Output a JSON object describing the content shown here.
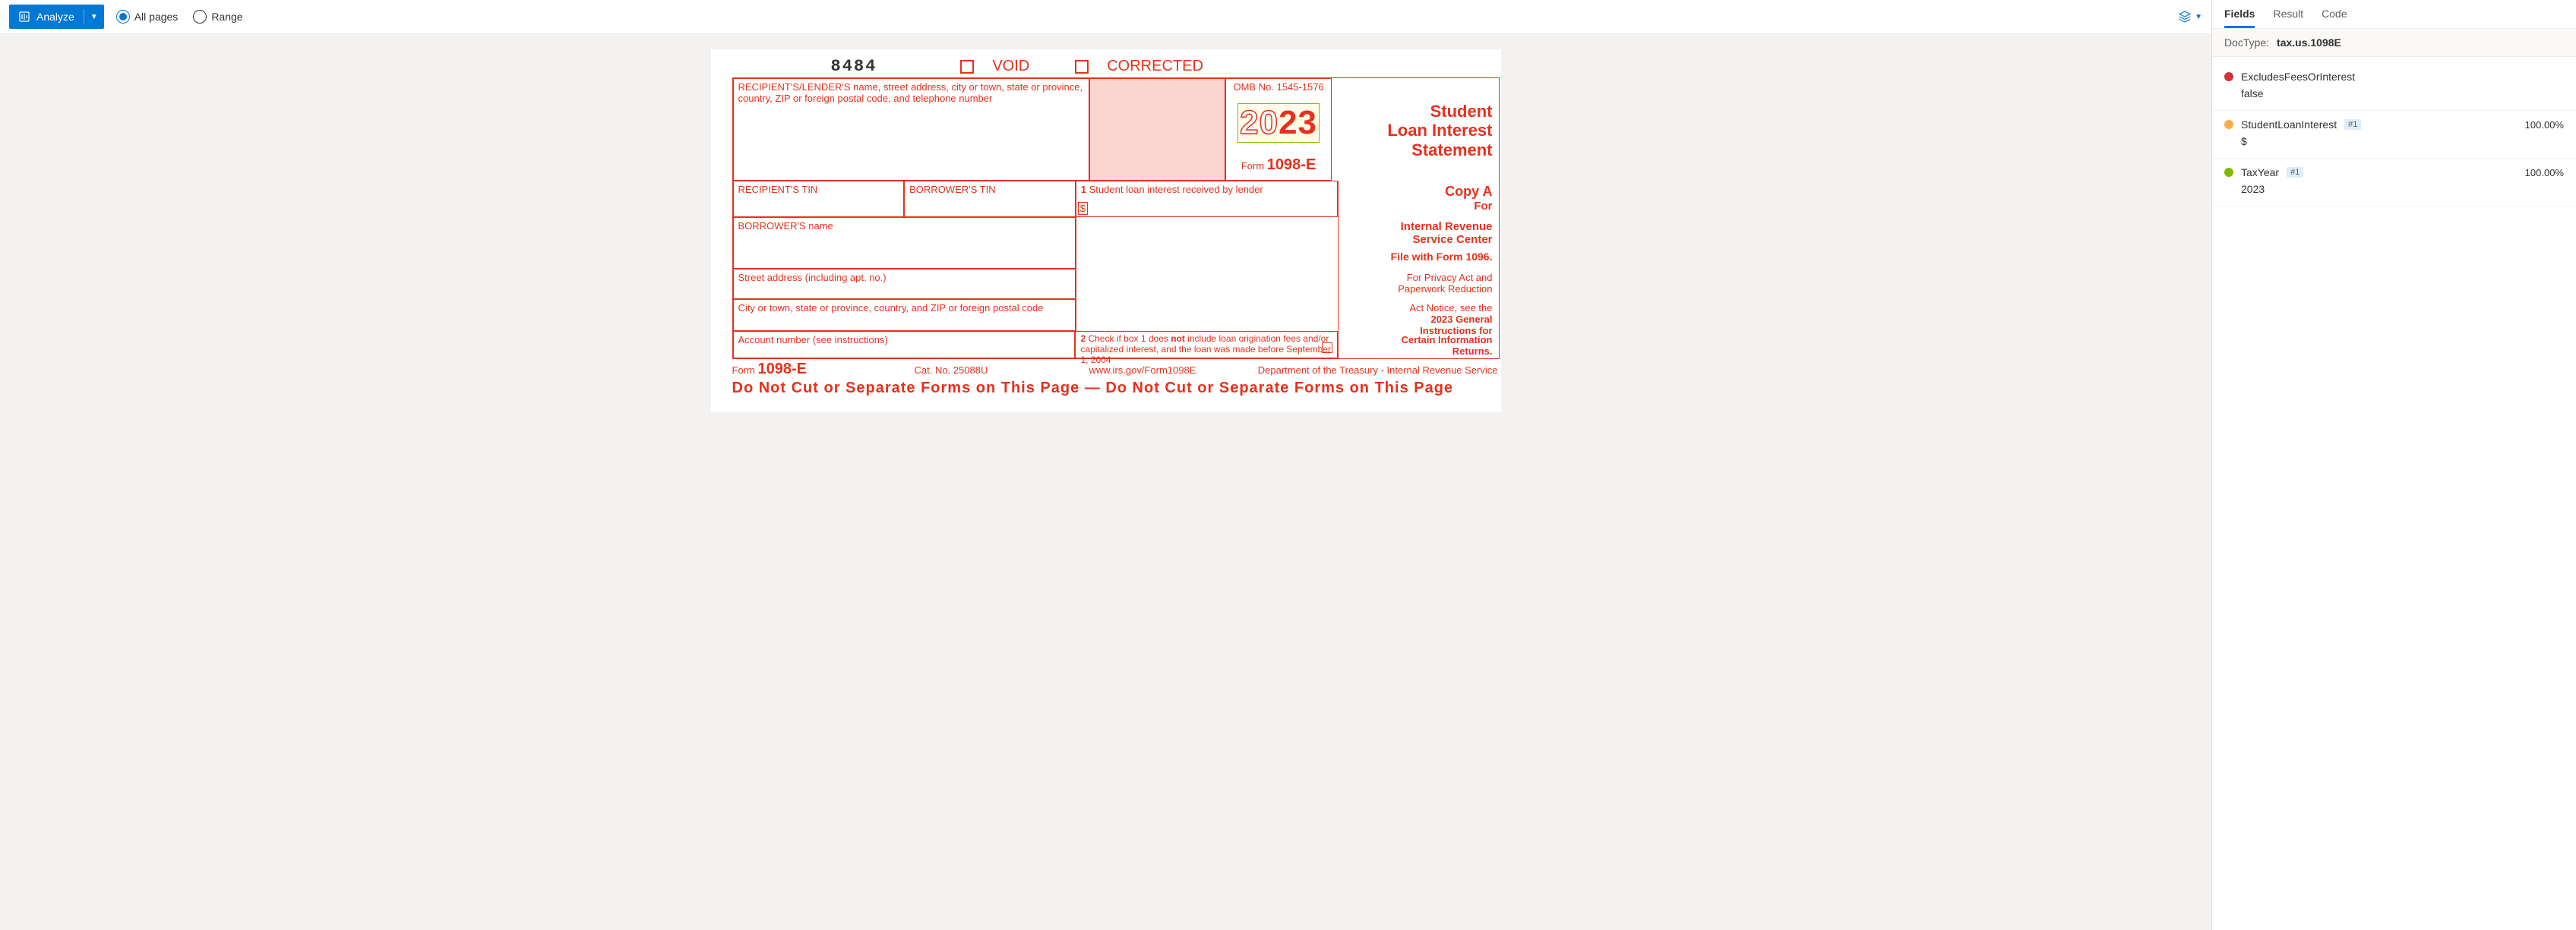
{
  "toolbar": {
    "analyze_label": "Analyze",
    "all_pages_label": "All pages",
    "range_label": "Range",
    "selected_mode": "all"
  },
  "side": {
    "tabs": [
      "Fields",
      "Result",
      "Code"
    ],
    "active_tab": 0,
    "doctype_label": "DocType:",
    "doctype_value": "tax.us.1098E",
    "fields": [
      {
        "color": "#d13438",
        "name": "ExcludesFeesOrInterest",
        "badge": null,
        "confidence": null,
        "value": "false"
      },
      {
        "color": "#ffaa44",
        "name": "StudentLoanInterest",
        "badge": "#1",
        "confidence": "100.00%",
        "value": "$"
      },
      {
        "color": "#7fba00",
        "name": "TaxYear",
        "badge": "#1",
        "confidence": "100.00%",
        "value": "2023"
      }
    ]
  },
  "form": {
    "stamp": "8484",
    "void_label": "VOID",
    "corrected_label": "CORRECTED",
    "lender_label": "RECIPIENT'S/LENDER'S name, street address, city or town, state or province, country, ZIP or foreign postal code, and telephone number",
    "omb": "OMB No. 1545-1576",
    "year_20": "20",
    "year_23": "23",
    "form_label": "Form",
    "form_code": "1098-E",
    "title_line1": "Student",
    "title_line2": "Loan Interest",
    "title_line3": "Statement",
    "recipient_tin": "RECIPIENT'S TIN",
    "borrower_tin": "BORROWER'S TIN",
    "box1_label": "Student loan interest received by lender",
    "box1_num": "1",
    "dollar": "$",
    "copy_a": "Copy A",
    "for_label": "For",
    "irs_center1": "Internal Revenue",
    "irs_center2": "Service Center",
    "file_with": "File with Form 1096.",
    "privacy1": "For Privacy Act and",
    "privacy2": "Paperwork Reduction",
    "privacy3": "Act Notice, see the",
    "privacy4": "2023 General",
    "privacy5": "Instructions for",
    "privacy6": "Certain Information",
    "privacy7": "Returns.",
    "borrower_name": "BORROWER'S name",
    "street": "Street address (including apt. no.)",
    "city": "City or town, state or province, country, and ZIP or foreign postal code",
    "account": "Account number (see instructions)",
    "box2_num": "2",
    "box2_a": "Check if box 1 does ",
    "box2_not": "not",
    "box2_b": " include loan origination fees and/or capitalized interest, and the loan was made before September 1, 2004",
    "footer_form": "Form",
    "footer_form_code": "1098-E",
    "footer_cat": "Cat. No. 25088U",
    "footer_url": "www.irs.gov/Form1098E",
    "footer_dept": "Department of the Treasury - Internal Revenue Service",
    "warning": "Do Not Cut or Separate Forms on This Page — Do Not Cut or Separate Forms on This Page"
  },
  "colors": {
    "primary": "#0078d4",
    "form_red": "#e8301c",
    "pink_fill": "#fbd5d0"
  }
}
